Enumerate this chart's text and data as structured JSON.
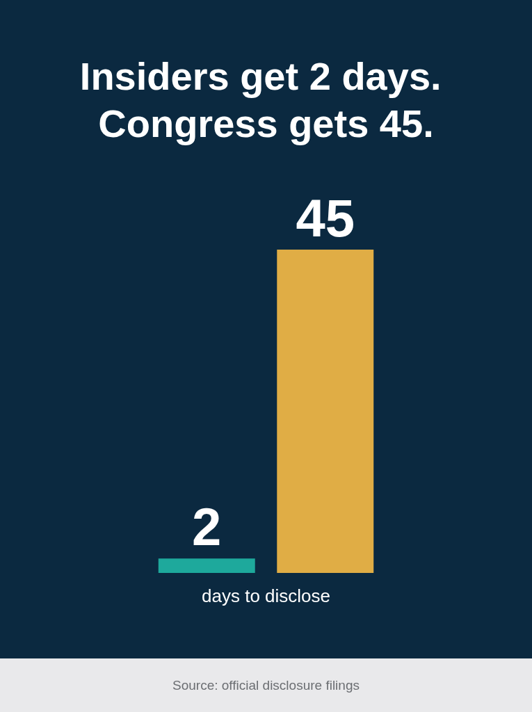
{
  "chart_data": {
    "type": "bar",
    "title": "Insiders get 2 days. Congress gets 45.",
    "xlabel": "days to disclose",
    "categories": [
      null,
      null
    ],
    "values": [
      2,
      45
    ],
    "colors": [
      "#1ea99c",
      "#e0ad45"
    ],
    "data_labels": true,
    "annotations": [
      "Source: official disclosure filings"
    ]
  }
}
